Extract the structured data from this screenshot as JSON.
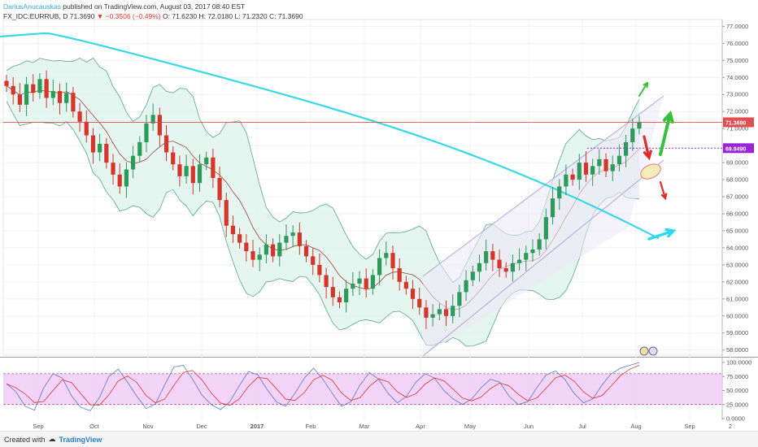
{
  "header": {
    "author": "DariusAnucauskas",
    "published": "published on TradingView.com, August 03, 2017 08:40 EST",
    "symbol": "FX_IDC:EURRUB, D",
    "last": "71.3690",
    "change": "▼ −0.3506 (−0.49%)",
    "open": "O: 71.6230",
    "high": "H: 72.0180",
    "low": "L: 71.2320",
    "close": "C: 71.3690"
  },
  "footer": {
    "created_with": "Created with",
    "brand": "TradingView"
  },
  "colors": {
    "up": "#2d9a5b",
    "down": "#d6352c",
    "ma200": "#38d8e8",
    "bollinger_fill": "#dff3ec",
    "bollinger_line": "#59a690",
    "channel": "#b3a6d8",
    "channel_fill": "#ede9f7",
    "stoch_band": "#f0c8f5",
    "price_line": "#e05050",
    "level_line": "#9b24d8"
  },
  "chart_data": {
    "type": "candlestick",
    "price_axis": {
      "ylim": [
        57.7,
        77.4
      ],
      "ticks": [
        "77.0000",
        "76.0000",
        "75.0000",
        "74.0000",
        "73.0000",
        "72.0000",
        "71.0000",
        "70.0000",
        "69.0000",
        "68.0000",
        "67.0000",
        "66.0000",
        "65.0000",
        "64.0000",
        "63.0000",
        "62.0000",
        "61.0000",
        "60.0000",
        "59.0000",
        "58.0000"
      ]
    },
    "time_axis": {
      "labels": [
        "Sep",
        "Oct",
        "Nov",
        "Dec",
        "2017",
        "Feb",
        "Mar",
        "Apr",
        "May",
        "Jun",
        "Jul",
        "Aug",
        "Sep",
        "2"
      ]
    },
    "last_price_label": "71.3690",
    "level_label": "69.8490",
    "level_value": 69.849,
    "last_price_value": 71.369,
    "ohlc_close_path": [
      73.5,
      73.0,
      72.4,
      73.6,
      73.1,
      73.9,
      72.8,
      73.2,
      72.5,
      73.1,
      72.0,
      71.4,
      70.6,
      69.6,
      70.1,
      69.0,
      68.3,
      67.6,
      68.6,
      69.4,
      70.2,
      71.3,
      71.8,
      70.6,
      69.6,
      68.9,
      68.2,
      68.8,
      67.8,
      68.9,
      69.3,
      68.1,
      66.8,
      65.3,
      64.8,
      64.3,
      63.8,
      63.3,
      63.6,
      64.2,
      63.5,
      64.3,
      64.7,
      64.9,
      64.1,
      63.5,
      63.0,
      62.4,
      61.7,
      61.1,
      60.8,
      61.6,
      61.9,
      62.2,
      61.6,
      62.4,
      63.4,
      63.7,
      62.8,
      62.0,
      61.6,
      61.0,
      60.5,
      59.9,
      60.1,
      60.4,
      60.0,
      60.6,
      61.4,
      62.1,
      62.6,
      63.1,
      63.8,
      63.3,
      62.8,
      62.6,
      63.1,
      63.3,
      63.7,
      63.9,
      64.5,
      65.8,
      66.9,
      67.6,
      68.3,
      68.0,
      69.0,
      68.3,
      68.8,
      69.2,
      68.5,
      68.9,
      69.4,
      70.2,
      71.0,
      71.4
    ],
    "ma200": {
      "start": 76.4,
      "peak_index": 6,
      "peak": 76.6,
      "end": 64.5
    },
    "stochastic": {
      "ticks": [
        "100.0000",
        "75.0000",
        "50.0000",
        "25.0000",
        "0.0000"
      ],
      "band": [
        25,
        80
      ],
      "k_sample": [
        62,
        48,
        22,
        15,
        55,
        80,
        72,
        40,
        20,
        14,
        38,
        75,
        88,
        65,
        40,
        18,
        26,
        60,
        92,
        95,
        70,
        42,
        25,
        16,
        30,
        58,
        84,
        78,
        52,
        30,
        22,
        45,
        72,
        90,
        70,
        45,
        22,
        30,
        60,
        82,
        70,
        45,
        28,
        40,
        65,
        80,
        72,
        50,
        35,
        25,
        35,
        55,
        70,
        65,
        40,
        25,
        30,
        55,
        78,
        85,
        70,
        45,
        28,
        35,
        60,
        80,
        90,
        95,
        100
      ]
    }
  }
}
